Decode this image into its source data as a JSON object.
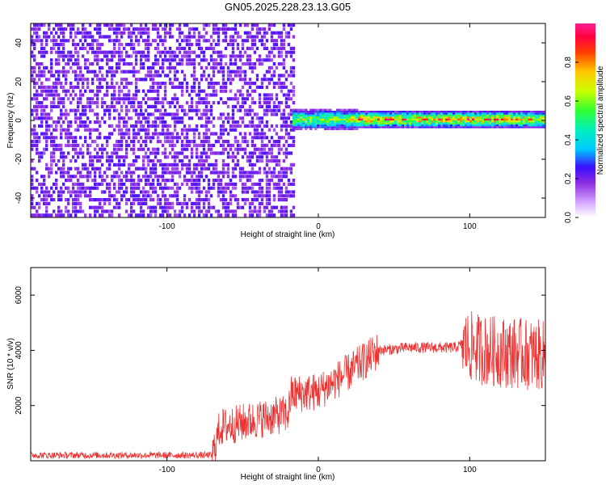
{
  "title": "GN05.2025.228.23.13.G05",
  "chart_data": [
    {
      "type": "heatmap",
      "xlabel": "Height of straight line (km)",
      "ylabel": "Frequency (Hz)",
      "xlim": [
        -190,
        150
      ],
      "ylim": [
        -50,
        50
      ],
      "xticks": [
        -100,
        0,
        100
      ],
      "yticks": [
        -40,
        -20,
        0,
        20,
        40
      ],
      "colorbar": {
        "label": "Normalized spectral amplitude",
        "range": [
          0,
          1
        ],
        "ticks": [
          0.0,
          0.2,
          0.4,
          0.6,
          0.8
        ]
      },
      "regions": [
        {
          "x_range": [
            -190,
            -17
          ],
          "y_range": [
            -50,
            50
          ],
          "amplitude": [
            0.05,
            0.25
          ]
        },
        {
          "x_range": [
            -17,
            150
          ],
          "y_range": [
            -5,
            5
          ],
          "amplitude": [
            0.3,
            1.0
          ],
          "center_freq": 0
        }
      ]
    },
    {
      "type": "line",
      "xlabel": "Height of straight line (km)",
      "ylabel": "SNR (10 * v/v)",
      "xlim": [
        -190,
        150
      ],
      "ylim": [
        0,
        7000
      ],
      "xticks": [
        -100,
        0,
        100
      ],
      "yticks": [
        2000,
        4000,
        6000
      ],
      "color": "#ee3333",
      "envelope": [
        {
          "x": -190,
          "y": 200
        },
        {
          "x": -100,
          "y": 200
        },
        {
          "x": -70,
          "y": 200
        },
        {
          "x": -65,
          "y": 1200
        },
        {
          "x": -40,
          "y": 1500
        },
        {
          "x": -20,
          "y": 1700
        },
        {
          "x": -18,
          "y": 2400
        },
        {
          "x": 0,
          "y": 2500
        },
        {
          "x": 20,
          "y": 3200
        },
        {
          "x": 40,
          "y": 4000
        },
        {
          "x": 60,
          "y": 4100
        },
        {
          "x": 90,
          "y": 4100
        },
        {
          "x": 95,
          "y": 4200
        },
        {
          "x": 110,
          "y": 4000
        },
        {
          "x": 150,
          "y": 3800
        }
      ]
    }
  ]
}
